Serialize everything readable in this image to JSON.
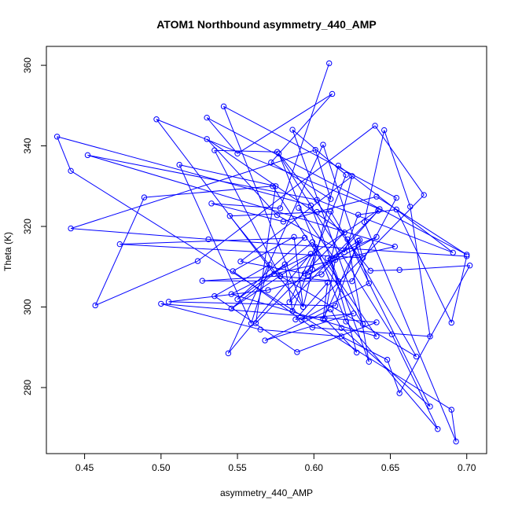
{
  "chart_data": {
    "type": "line",
    "title": "ATOM1 Northbound asymmetry_440_AMP",
    "xlabel": "asymmetry_440_AMP",
    "ylabel": "Theta (K)",
    "xlim": [
      0.425,
      0.713
    ],
    "ylim": [
      263.6,
      364.7
    ],
    "xticks": [
      0.45,
      0.5,
      0.55,
      0.6,
      0.65,
      0.7
    ],
    "xtick_labels": [
      "0.45",
      "0.50",
      "0.55",
      "0.60",
      "0.65",
      "0.70"
    ],
    "yticks": [
      280,
      300,
      320,
      340,
      360
    ],
    "ytick_labels": [
      "280",
      "300",
      "320",
      "340",
      "360"
    ],
    "grid": false,
    "marker": "open-circle",
    "series": [
      {
        "color": "#0000ff",
        "x": [
          0.61,
          0.578,
          0.533,
          0.58,
          0.602,
          0.641,
          0.7,
          0.53,
          0.55,
          0.612,
          0.572,
          0.611,
          0.601,
          0.441,
          0.531,
          0.7,
          0.69,
          0.654,
          0.629,
          0.62,
          0.576,
          0.53,
          0.62,
          0.562,
          0.575,
          0.512,
          0.559,
          0.571,
          0.535,
          0.589,
          0.641,
          0.5,
          0.565,
          0.618,
          0.648,
          0.656,
          0.702,
          0.656,
          0.637,
          0.577,
          0.621,
          0.681,
          0.651,
          0.576,
          0.535,
          0.578,
          0.616,
          0.609,
          0.641,
          0.596,
          0.63,
          0.606,
          0.609,
          0.588,
          0.626,
          0.568,
          0.611,
          0.618,
          0.676,
          0.622,
          0.636,
          0.598,
          0.432,
          0.441,
          0.69,
          0.693,
          0.633,
          0.646,
          0.663,
          0.676,
          0.599,
          0.547,
          0.587,
          0.593,
          0.545,
          0.611,
          0.667,
          0.578,
          0.527,
          0.625,
          0.654,
          0.541,
          0.593,
          0.616,
          0.691,
          0.602,
          0.452,
          0.653,
          0.574,
          0.497,
          0.643,
          0.546,
          0.599,
          0.641,
          0.546,
          0.598,
          0.544,
          0.606,
          0.636,
          0.592,
          0.672,
          0.64,
          0.524,
          0.457,
          0.489,
          0.573,
          0.632,
          0.586,
          0.621,
          0.586,
          0.581,
          0.55,
          0.594,
          0.473,
          0.632,
          0.629,
          0.614,
          0.505,
          0.57,
          0.605,
          0.642,
          0.584,
          0.601,
          0.599,
          0.594,
          0.552,
          0.625,
          0.611,
          0.628,
          0.607,
          0.614,
          0.59
        ],
        "y": [
          360.5,
          324.5,
          325.7,
          321.2,
          323.6,
          327.4,
          313.0,
          347.0,
          338.1,
          352.9,
          335.9,
          326.8,
          339.0,
          319.5,
          316.8,
          312.6,
          296.1,
          324.2,
          322.9,
          313.6,
          322.8,
          341.7,
          318.5,
          296.0,
          330.0,
          335.3,
          295.9,
          310.5,
          302.7,
          288.8,
          296.2,
          300.8,
          294.4,
          292.7,
          286.9,
          278.6,
          310.3,
          309.2,
          309.0,
          338.1,
          296.4,
          269.7,
          293.2,
          338.5,
          338.9,
          307.6,
          306.4,
          312.1,
          317.4,
          307.9,
          316.6,
          297.0,
          306.1,
          296.9,
          298.4,
          291.7,
          299.4,
          294.8,
          275.3,
          316.8,
          286.4,
          325.2,
          342.3,
          333.8,
          274.5,
          266.6,
          321.1,
          343.9,
          324.9,
          292.7,
          294.9,
          308.9,
          317.4,
          300.0,
          322.6,
          323.7,
          287.7,
          307.7,
          306.5,
          306.4,
          327.1,
          349.8,
          300.0,
          335.1,
          313.5,
          326.6,
          337.7,
          315.0,
          308.2,
          346.6,
          324.3,
          299.6,
          316.1,
          292.7,
          303.2,
          313.2,
          288.5,
          340.3,
          305.9,
          296.8,
          327.8,
          345.0,
          311.4,
          300.4,
          327.2,
          330.0,
          295.8,
          344.0,
          332.8,
          299.0,
          310.6,
          301.9,
          317.2,
          315.6,
          312.2,
          316.4,
          300.3,
          301.3,
          304.2,
          308.1,
          323.9,
          301.2,
          314.9,
          309.3,
          308.3,
          311.3,
          332.5,
          311.7,
          288.7,
          297.2,
          311.7,
          324.6
        ]
      }
    ]
  }
}
